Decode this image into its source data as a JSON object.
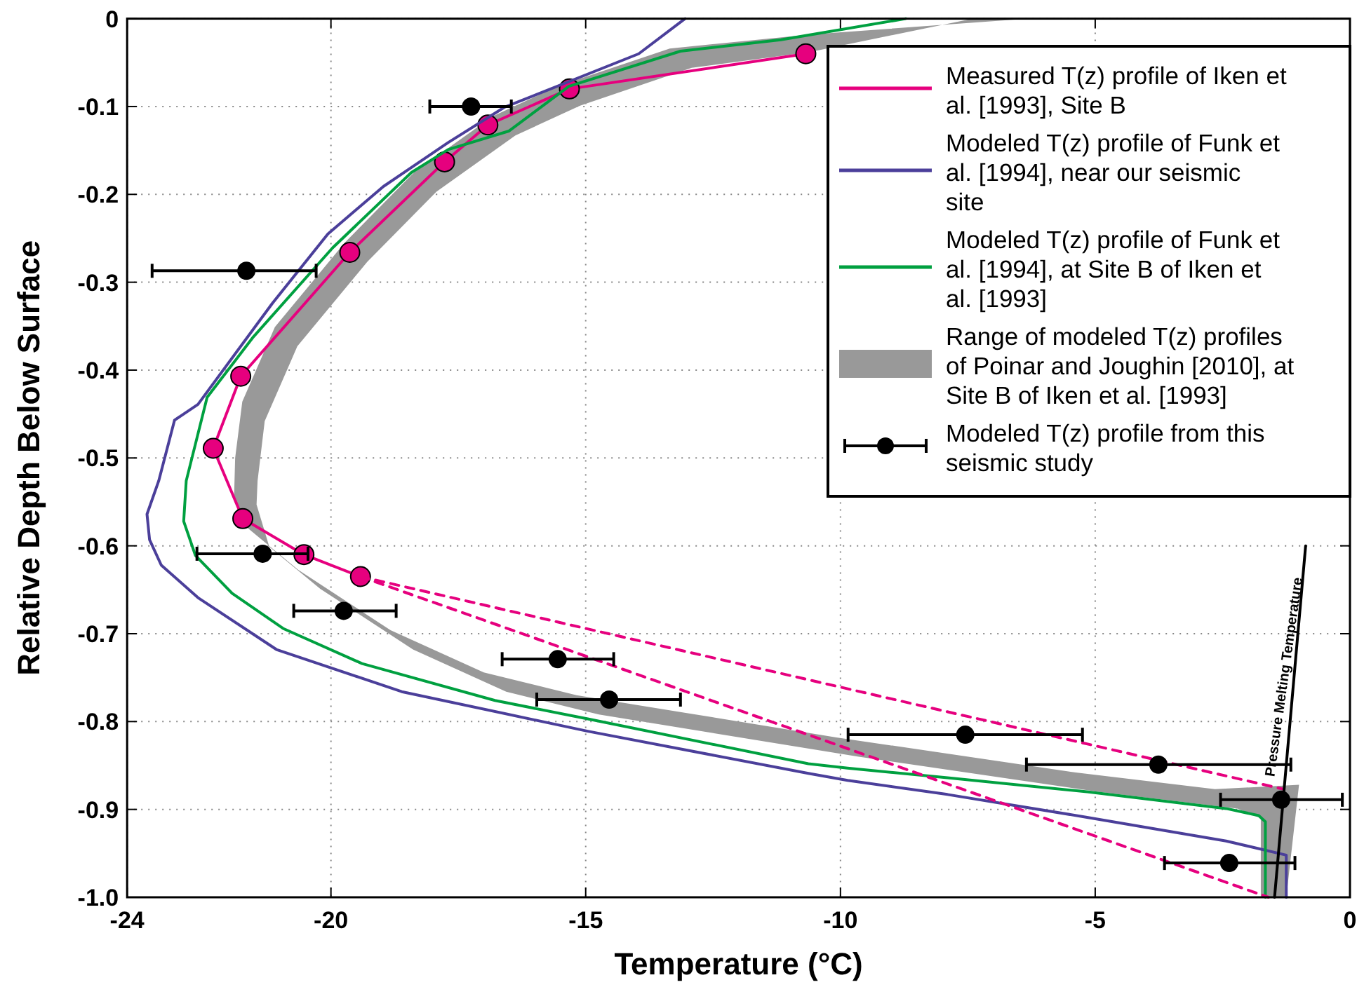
{
  "chart_data": {
    "type": "line",
    "xlabel": "Temperature (°C)",
    "ylabel": "Relative Depth Below Surface",
    "xlim": [
      -24,
      0
    ],
    "ylim": [
      -1,
      0
    ],
    "xticks": [
      -24,
      -20,
      -15,
      -10,
      -5,
      0
    ],
    "yticks": [
      0,
      -0.1,
      -0.2,
      -0.3,
      -0.4,
      -0.5,
      -0.6,
      -0.7,
      -0.8,
      -0.9,
      {
        "value": -1,
        "label": "-1.0"
      }
    ],
    "grid": true,
    "legend": "top right",
    "annotations": [
      {
        "text": "Pressure Melting Temperature",
        "x": -1.1,
        "y": -0.75
      }
    ],
    "series": [
      {
        "name": "Measured T(z) profile of Iken et al. [1993], Site B",
        "color": "#e6007e",
        "marker": "circle",
        "x": [
          -10.68,
          -15.32,
          -16.92,
          -17.77,
          -19.63,
          -21.77,
          -22.31,
          -21.73,
          -20.53,
          -19.42
        ],
        "values": [
          -0.04,
          -0.08,
          -0.121,
          -0.163,
          -0.266,
          -0.407,
          -0.489,
          -0.569,
          -0.61,
          -0.635
        ]
      },
      {
        "name": "Modeled T(z) profile of Funk et al. [1994], near our seismic site",
        "color": "#4b3f9a",
        "x": [
          -13.05,
          -13.96,
          -16.6,
          -17.7,
          -18.97,
          -20.06,
          -21.15,
          -22.61,
          -23.07,
          -23.38,
          -23.61,
          -23.56,
          -23.33,
          -22.61,
          -21.07,
          -18.61,
          -14.96,
          -10.63,
          -9.86,
          -7.9,
          -5.16,
          -2.43,
          -1.25,
          -1.25
        ],
        "values": [
          0,
          -0.04,
          -0.101,
          -0.141,
          -0.191,
          -0.245,
          -0.324,
          -0.439,
          -0.457,
          -0.526,
          -0.564,
          -0.593,
          -0.622,
          -0.659,
          -0.718,
          -0.766,
          -0.811,
          -0.859,
          -0.867,
          -0.883,
          -0.909,
          -0.936,
          -0.952,
          -1
        ]
      },
      {
        "name": "Modeled T(z) profile of Funk et al. [1994], at Site B of Iken et al. [1993]",
        "color": "#00a040",
        "x": [
          -8.72,
          -11.17,
          -13.14,
          -15.33,
          -16.51,
          -17.7,
          -18.42,
          -19.97,
          -21.52,
          -22.43,
          -22.84,
          -22.89,
          -22.66,
          -21.94,
          -20.94,
          -19.39,
          -16.78,
          -14.96,
          -10.63,
          -9.86,
          -7.9,
          -5.16,
          -2.43,
          -1.79,
          -1.66,
          -1.66
        ],
        "values": [
          0,
          -0.024,
          -0.037,
          -0.077,
          -0.128,
          -0.149,
          -0.175,
          -0.261,
          -0.362,
          -0.431,
          -0.526,
          -0.572,
          -0.611,
          -0.654,
          -0.694,
          -0.734,
          -0.776,
          -0.797,
          -0.848,
          -0.853,
          -0.864,
          -0.88,
          -0.899,
          -0.907,
          -0.914,
          -1
        ]
      },
      {
        "type": "area",
        "name": "Range of modeled T(z) profiles of Poinar and Joughin [2010], at Site B of Iken et al. [1993]",
        "color": "#999999",
        "x": [
          -6.3,
          -10.6,
          -13.35,
          -15.55,
          -16.82,
          -18.37,
          -19.73,
          -21.1,
          -21.74,
          -21.88,
          -21.9,
          -21.65,
          -20.65,
          -18.83,
          -17.0,
          -15.18,
          -10.08,
          -5.38,
          -2.65,
          -1.0,
          -1.25,
          -1.75,
          -1.75,
          -2.21,
          -4.94,
          -9.64,
          -14.74,
          -16.56,
          -18.39,
          -20.21,
          -21.21,
          -21.46,
          -21.44,
          -21.3,
          -20.66,
          -19.29,
          -17.93,
          -16.38,
          -15.11,
          -12.92,
          -10.6,
          -7.4
        ],
        "values": [
          0,
          -0.018,
          -0.034,
          -0.077,
          -0.111,
          -0.175,
          -0.255,
          -0.351,
          -0.436,
          -0.5,
          -0.542,
          -0.579,
          -0.627,
          -0.696,
          -0.744,
          -0.77,
          -0.818,
          -0.858,
          -0.877,
          -0.872,
          -1,
          -1,
          -0.91,
          -0.899,
          -0.88,
          -0.84,
          -0.792,
          -0.766,
          -0.718,
          -0.649,
          -0.601,
          -0.553,
          -0.526,
          -0.458,
          -0.373,
          -0.277,
          -0.197,
          -0.133,
          -0.099,
          -0.056,
          -0.038,
          0
        ]
      },
      {
        "type": "scatter",
        "name": "Modeled T(z) profile from this seismic study",
        "color": "#000000",
        "marker": "circle",
        "x": [
          -17.25,
          -21.66,
          -21.34,
          -19.75,
          -15.55,
          -14.54,
          -7.55,
          -3.76,
          -1.35,
          -2.37
        ],
        "values": [
          -0.1,
          -0.287,
          -0.609,
          -0.674,
          -0.729,
          -0.775,
          -0.815,
          -0.849,
          -0.889,
          -0.961
        ],
        "xerrors": [
          [
            -18.06,
            -16.46
          ],
          [
            -23.51,
            -20.29
          ],
          [
            -22.63,
            -20.45
          ],
          [
            -20.73,
            -18.72
          ],
          [
            -16.64,
            -14.45
          ],
          [
            -15.96,
            -13.14
          ],
          [
            -9.85,
            -5.25
          ],
          [
            -6.35,
            -1.16
          ],
          [
            -2.54,
            -0.15
          ],
          [
            -3.64,
            -1.08
          ]
        ]
      },
      {
        "color": "#e6007e",
        "line_style": "dashed",
        "x": [
          -19.42,
          -1.3
        ],
        "values": [
          -0.635,
          -0.877
        ]
      },
      {
        "color": "#e6007e",
        "line_style": "dashed",
        "x": [
          -19.42,
          -1.6
        ],
        "values": [
          -0.635,
          -1
        ]
      },
      {
        "color": "#000000",
        "x": [
          -0.87,
          -1.48
        ],
        "values": [
          -0.6,
          -1
        ]
      }
    ]
  }
}
